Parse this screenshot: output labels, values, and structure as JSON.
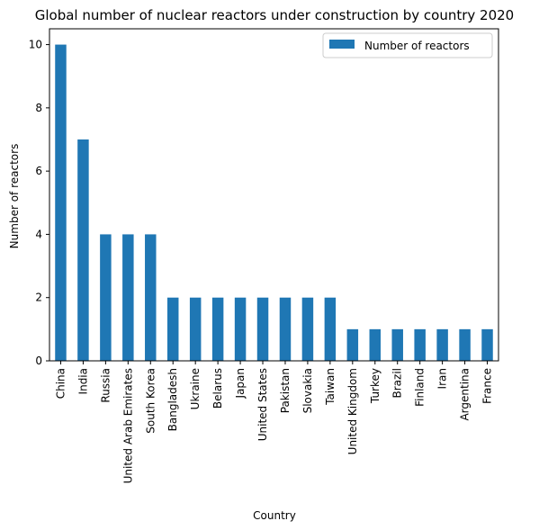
{
  "chart_data": {
    "type": "bar",
    "title": "Global number of nuclear reactors under construction by country 2020",
    "xlabel": "Country",
    "ylabel": "Number of reactors",
    "ylim": [
      0,
      10.5
    ],
    "yticks": [
      0,
      2,
      4,
      6,
      8,
      10
    ],
    "grid": false,
    "legend": "top-right",
    "categories": [
      "China",
      "India",
      "Russia",
      "United Arab Emirates",
      "South Korea",
      "Bangladesh",
      "Ukraine",
      "Belarus",
      "Japan",
      "United States",
      "Pakistan",
      "Slovakia",
      "Taiwan",
      "United Kingdom",
      "Turkey",
      "Brazil",
      "Finland",
      "Iran",
      "Argentina",
      "France"
    ],
    "series": [
      {
        "name": "Number of reactors",
        "color": "#1f77b4",
        "values": [
          10,
          7,
          4,
          4,
          4,
          2,
          2,
          2,
          2,
          2,
          2,
          2,
          2,
          1,
          1,
          1,
          1,
          1,
          1,
          1
        ]
      }
    ]
  }
}
